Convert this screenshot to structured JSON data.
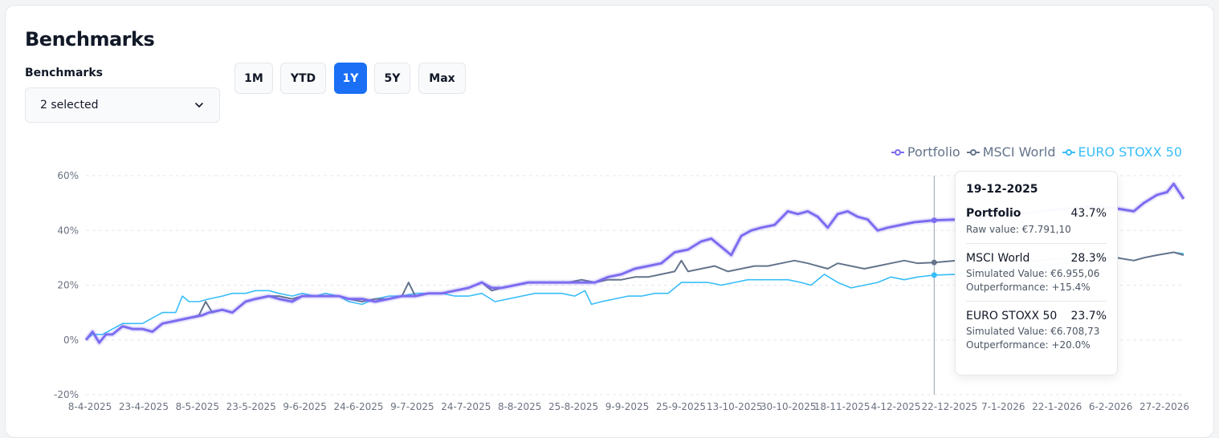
{
  "header": {
    "title": "Benchmarks"
  },
  "benchmarks_select": {
    "label": "Benchmarks",
    "value": "2 selected"
  },
  "ranges": [
    {
      "label": "1M",
      "active": false
    },
    {
      "label": "YTD",
      "active": false
    },
    {
      "label": "1Y",
      "active": true
    },
    {
      "label": "5Y",
      "active": false
    },
    {
      "label": "Max",
      "active": false
    }
  ],
  "colors": {
    "portfolio": "#7c6cf0",
    "msci": "#64748b",
    "stoxx": "#38bdf8",
    "accent": "#1a6ff4"
  },
  "tooltip": {
    "date": "19-12-2025",
    "portfolio": {
      "name": "Portfolio",
      "value": "43.7%",
      "raw": "Raw value: €7.791,10"
    },
    "msci": {
      "name": "MSCI World",
      "value": "28.3%",
      "simulated": "Simulated Value: €6.955,06",
      "outperformance": "Outperformance: +15.4%"
    },
    "stoxx": {
      "name": "EURO STOXX 50",
      "value": "23.7%",
      "simulated": "Simulated Value: €6.708,73",
      "outperformance": "Outperformance: +20.0%"
    }
  },
  "chart_data": {
    "type": "line",
    "title": "",
    "xlabel": "",
    "ylabel": "",
    "ylim": [
      -20,
      60
    ],
    "yticks": [
      "-20%",
      "0%",
      "20%",
      "40%",
      "60%"
    ],
    "xticks": [
      "8-4-2025",
      "23-4-2025",
      "8-5-2025",
      "23-5-2025",
      "9-6-2025",
      "24-6-2025",
      "9-7-2025",
      "24-7-2025",
      "8-8-2025",
      "25-8-2025",
      "9-9-2025",
      "25-9-2025",
      "13-10-2025",
      "30-10-2025",
      "18-11-2025",
      "4-12-2025",
      "22-12-2025",
      "7-1-2026",
      "22-1-2026",
      "6-2-2026",
      "27-2-2026"
    ],
    "grid": true,
    "legend_position": "top-right",
    "x_start": "2025-04-08",
    "x_end": "2026-03-04",
    "series": [
      {
        "name": "Portfolio",
        "points": [
          [
            "2025-04-08",
            0
          ],
          [
            "2025-04-10",
            3
          ],
          [
            "2025-04-12",
            -1
          ],
          [
            "2025-04-14",
            2
          ],
          [
            "2025-04-16",
            2
          ],
          [
            "2025-04-19",
            5
          ],
          [
            "2025-04-22",
            4
          ],
          [
            "2025-04-25",
            4
          ],
          [
            "2025-04-28",
            3
          ],
          [
            "2025-05-01",
            6
          ],
          [
            "2025-05-05",
            7
          ],
          [
            "2025-05-09",
            8
          ],
          [
            "2025-05-13",
            9
          ],
          [
            "2025-05-15",
            10
          ],
          [
            "2025-05-19",
            11
          ],
          [
            "2025-05-22",
            10
          ],
          [
            "2025-05-26",
            14
          ],
          [
            "2025-05-29",
            15
          ],
          [
            "2025-06-02",
            16
          ],
          [
            "2025-06-05",
            15
          ],
          [
            "2025-06-09",
            14
          ],
          [
            "2025-06-12",
            16
          ],
          [
            "2025-06-16",
            16
          ],
          [
            "2025-06-19",
            16
          ],
          [
            "2025-06-23",
            16
          ],
          [
            "2025-06-26",
            15
          ],
          [
            "2025-06-30",
            15
          ],
          [
            "2025-07-04",
            14
          ],
          [
            "2025-07-08",
            15
          ],
          [
            "2025-07-12",
            16
          ],
          [
            "2025-07-16",
            16
          ],
          [
            "2025-07-20",
            17
          ],
          [
            "2025-07-24",
            17
          ],
          [
            "2025-07-28",
            18
          ],
          [
            "2025-08-01",
            19
          ],
          [
            "2025-08-05",
            21
          ],
          [
            "2025-08-08",
            19
          ],
          [
            "2025-08-11",
            19
          ],
          [
            "2025-08-15",
            20
          ],
          [
            "2025-08-19",
            21
          ],
          [
            "2025-08-23",
            21
          ],
          [
            "2025-08-27",
            21
          ],
          [
            "2025-08-31",
            21
          ],
          [
            "2025-09-04",
            21
          ],
          [
            "2025-09-08",
            21
          ],
          [
            "2025-09-12",
            23
          ],
          [
            "2025-09-16",
            24
          ],
          [
            "2025-09-20",
            26
          ],
          [
            "2025-09-24",
            27
          ],
          [
            "2025-09-28",
            28
          ],
          [
            "2025-10-02",
            32
          ],
          [
            "2025-10-06",
            33
          ],
          [
            "2025-10-10",
            36
          ],
          [
            "2025-10-13",
            37
          ],
          [
            "2025-10-16",
            34
          ],
          [
            "2025-10-19",
            31
          ],
          [
            "2025-10-22",
            38
          ],
          [
            "2025-10-25",
            40
          ],
          [
            "2025-10-28",
            41
          ],
          [
            "2025-11-01",
            42
          ],
          [
            "2025-11-05",
            47
          ],
          [
            "2025-11-08",
            46
          ],
          [
            "2025-11-11",
            47
          ],
          [
            "2025-11-14",
            45
          ],
          [
            "2025-11-17",
            41
          ],
          [
            "2025-11-20",
            46
          ],
          [
            "2025-11-23",
            47
          ],
          [
            "2025-11-26",
            45
          ],
          [
            "2025-11-29",
            44
          ],
          [
            "2025-12-02",
            40
          ],
          [
            "2025-12-05",
            41
          ],
          [
            "2025-12-09",
            42
          ],
          [
            "2025-12-13",
            43
          ],
          [
            "2025-12-19",
            43.7
          ],
          [
            "2025-12-26",
            44
          ],
          [
            "2026-01-04",
            45
          ],
          [
            "2026-01-12",
            46
          ],
          [
            "2026-01-20",
            47
          ],
          [
            "2026-01-28",
            48
          ],
          [
            "2026-02-05",
            49
          ],
          [
            "2026-02-12",
            48
          ],
          [
            "2026-02-17",
            47
          ],
          [
            "2026-02-20",
            50
          ],
          [
            "2026-02-24",
            53
          ],
          [
            "2026-02-27",
            54
          ],
          [
            "2026-03-01",
            57
          ],
          [
            "2026-03-04",
            51.5
          ]
        ]
      },
      {
        "name": "MSCI World",
        "points": [
          [
            "2025-04-08",
            0
          ],
          [
            "2025-04-10",
            3
          ],
          [
            "2025-04-12",
            -1
          ],
          [
            "2025-04-14",
            2
          ],
          [
            "2025-04-16",
            2
          ],
          [
            "2025-04-19",
            5
          ],
          [
            "2025-04-22",
            4
          ],
          [
            "2025-04-25",
            4
          ],
          [
            "2025-04-28",
            3
          ],
          [
            "2025-05-01",
            6
          ],
          [
            "2025-05-05",
            7
          ],
          [
            "2025-05-09",
            8
          ],
          [
            "2025-05-12",
            9
          ],
          [
            "2025-05-14",
            14
          ],
          [
            "2025-05-16",
            10
          ],
          [
            "2025-05-19",
            11
          ],
          [
            "2025-05-22",
            10
          ],
          [
            "2025-05-26",
            14
          ],
          [
            "2025-05-29",
            15
          ],
          [
            "2025-06-02",
            16
          ],
          [
            "2025-06-05",
            16
          ],
          [
            "2025-06-09",
            15
          ],
          [
            "2025-06-12",
            16
          ],
          [
            "2025-06-16",
            16
          ],
          [
            "2025-06-19",
            16
          ],
          [
            "2025-06-23",
            16
          ],
          [
            "2025-06-26",
            15
          ],
          [
            "2025-06-30",
            14
          ],
          [
            "2025-07-04",
            15
          ],
          [
            "2025-07-08",
            15
          ],
          [
            "2025-07-12",
            16
          ],
          [
            "2025-07-14",
            21
          ],
          [
            "2025-07-16",
            16
          ],
          [
            "2025-07-20",
            17
          ],
          [
            "2025-07-24",
            17
          ],
          [
            "2025-07-28",
            18
          ],
          [
            "2025-08-01",
            19
          ],
          [
            "2025-08-05",
            21
          ],
          [
            "2025-08-08",
            18
          ],
          [
            "2025-08-11",
            19
          ],
          [
            "2025-08-15",
            20
          ],
          [
            "2025-08-19",
            21
          ],
          [
            "2025-08-23",
            21
          ],
          [
            "2025-08-27",
            21
          ],
          [
            "2025-08-31",
            21
          ],
          [
            "2025-09-04",
            22
          ],
          [
            "2025-09-08",
            21
          ],
          [
            "2025-09-12",
            22
          ],
          [
            "2025-09-16",
            22
          ],
          [
            "2025-09-20",
            23
          ],
          [
            "2025-09-24",
            23
          ],
          [
            "2025-09-28",
            24
          ],
          [
            "2025-10-02",
            25
          ],
          [
            "2025-10-04",
            29
          ],
          [
            "2025-10-06",
            25
          ],
          [
            "2025-10-10",
            26
          ],
          [
            "2025-10-14",
            27
          ],
          [
            "2025-10-18",
            25
          ],
          [
            "2025-10-22",
            26
          ],
          [
            "2025-10-26",
            27
          ],
          [
            "2025-10-30",
            27
          ],
          [
            "2025-11-03",
            28
          ],
          [
            "2025-11-07",
            29
          ],
          [
            "2025-11-11",
            28
          ],
          [
            "2025-11-14",
            27
          ],
          [
            "2025-11-17",
            26
          ],
          [
            "2025-11-20",
            28
          ],
          [
            "2025-11-24",
            27
          ],
          [
            "2025-11-28",
            26
          ],
          [
            "2025-12-02",
            27
          ],
          [
            "2025-12-06",
            28
          ],
          [
            "2025-12-10",
            29
          ],
          [
            "2025-12-14",
            28
          ],
          [
            "2025-12-19",
            28.3
          ],
          [
            "2025-12-26",
            29
          ],
          [
            "2026-01-04",
            28
          ],
          [
            "2026-01-12",
            29
          ],
          [
            "2026-01-20",
            29
          ],
          [
            "2026-01-28",
            30
          ],
          [
            "2026-02-05",
            30
          ],
          [
            "2026-02-12",
            30
          ],
          [
            "2026-02-17",
            29
          ],
          [
            "2026-02-20",
            30
          ],
          [
            "2026-02-24",
            31
          ],
          [
            "2026-03-01",
            32
          ],
          [
            "2026-03-04",
            31
          ]
        ]
      },
      {
        "name": "EURO STOXX 50",
        "points": [
          [
            "2025-04-08",
            0
          ],
          [
            "2025-04-10",
            2
          ],
          [
            "2025-04-13",
            2
          ],
          [
            "2025-04-16",
            4
          ],
          [
            "2025-04-19",
            6
          ],
          [
            "2025-04-22",
            6
          ],
          [
            "2025-04-25",
            6
          ],
          [
            "2025-04-28",
            8
          ],
          [
            "2025-05-01",
            10
          ],
          [
            "2025-05-05",
            10
          ],
          [
            "2025-05-07",
            16
          ],
          [
            "2025-05-09",
            14
          ],
          [
            "2025-05-12",
            14
          ],
          [
            "2025-05-15",
            15
          ],
          [
            "2025-05-19",
            16
          ],
          [
            "2025-05-22",
            17
          ],
          [
            "2025-05-26",
            17
          ],
          [
            "2025-05-29",
            18
          ],
          [
            "2025-06-02",
            18
          ],
          [
            "2025-06-05",
            17
          ],
          [
            "2025-06-09",
            16
          ],
          [
            "2025-06-12",
            17
          ],
          [
            "2025-06-16",
            16
          ],
          [
            "2025-06-19",
            17
          ],
          [
            "2025-06-23",
            16
          ],
          [
            "2025-06-26",
            14
          ],
          [
            "2025-06-30",
            13
          ],
          [
            "2025-07-04",
            15
          ],
          [
            "2025-07-08",
            16
          ],
          [
            "2025-07-12",
            16
          ],
          [
            "2025-07-16",
            17
          ],
          [
            "2025-07-20",
            17
          ],
          [
            "2025-07-24",
            17
          ],
          [
            "2025-07-28",
            16
          ],
          [
            "2025-08-01",
            16
          ],
          [
            "2025-08-05",
            17
          ],
          [
            "2025-08-09",
            14
          ],
          [
            "2025-08-13",
            15
          ],
          [
            "2025-08-17",
            16
          ],
          [
            "2025-08-21",
            17
          ],
          [
            "2025-08-25",
            17
          ],
          [
            "2025-08-29",
            17
          ],
          [
            "2025-09-02",
            16
          ],
          [
            "2025-09-05",
            18
          ],
          [
            "2025-09-07",
            13
          ],
          [
            "2025-09-10",
            14
          ],
          [
            "2025-09-14",
            15
          ],
          [
            "2025-09-18",
            16
          ],
          [
            "2025-09-22",
            16
          ],
          [
            "2025-09-26",
            17
          ],
          [
            "2025-09-30",
            17
          ],
          [
            "2025-10-04",
            21
          ],
          [
            "2025-10-08",
            21
          ],
          [
            "2025-10-12",
            21
          ],
          [
            "2025-10-16",
            20
          ],
          [
            "2025-10-20",
            21
          ],
          [
            "2025-10-24",
            22
          ],
          [
            "2025-10-28",
            22
          ],
          [
            "2025-11-01",
            22
          ],
          [
            "2025-11-05",
            22
          ],
          [
            "2025-11-09",
            21
          ],
          [
            "2025-11-12",
            20
          ],
          [
            "2025-11-16",
            24
          ],
          [
            "2025-11-20",
            21
          ],
          [
            "2025-11-24",
            19
          ],
          [
            "2025-11-28",
            20
          ],
          [
            "2025-12-02",
            21
          ],
          [
            "2025-12-06",
            23
          ],
          [
            "2025-12-10",
            22
          ],
          [
            "2025-12-14",
            23
          ],
          [
            "2025-12-19",
            23.7
          ],
          [
            "2025-12-26",
            24
          ],
          [
            "2026-01-04",
            25
          ],
          [
            "2026-01-12",
            26
          ],
          [
            "2026-01-20",
            27
          ],
          [
            "2026-01-28",
            28
          ],
          [
            "2026-02-05",
            29
          ],
          [
            "2026-02-12",
            30
          ],
          [
            "2026-02-17",
            29
          ],
          [
            "2026-02-20",
            30
          ],
          [
            "2026-02-24",
            31
          ],
          [
            "2026-03-01",
            32
          ],
          [
            "2026-03-04",
            31.5
          ]
        ]
      }
    ],
    "hover_date": "2025-12-19"
  }
}
